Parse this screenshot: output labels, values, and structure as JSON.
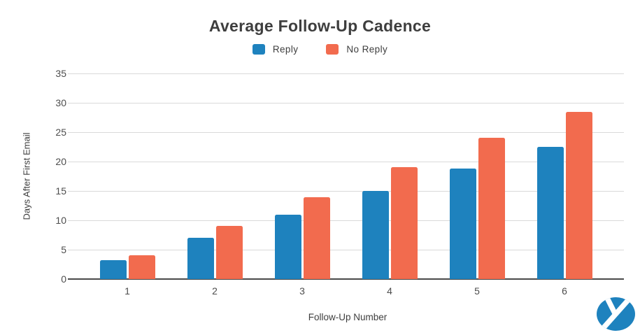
{
  "chart_data": {
    "type": "bar",
    "title": "Average Follow-Up Cadence",
    "categories": [
      "1",
      "2",
      "3",
      "4",
      "5",
      "6"
    ],
    "series": [
      {
        "name": "Reply",
        "color": "#1E82BE",
        "values": [
          3.2,
          7.0,
          11.0,
          15.0,
          18.8,
          22.5
        ]
      },
      {
        "name": "No Reply",
        "color": "#F26B4E",
        "values": [
          4.1,
          9.0,
          13.9,
          19.0,
          24.0,
          28.5
        ]
      }
    ],
    "xlabel": "Follow-Up Number",
    "ylabel": "Days After First Email",
    "ylim": [
      0,
      35
    ],
    "yticks": [
      0,
      5,
      10,
      15,
      20,
      25,
      30,
      35
    ],
    "grid": true,
    "legend_position": "top-center",
    "background": "#FFFFFF"
  },
  "colors": {
    "title_text": "#3E3E3E",
    "axis_text": "#4D4D4D",
    "gridline": "#D9D9D9",
    "axis_line": "#4A4A4A",
    "logo": "#1E82BE"
  },
  "branding": {
    "logo": "yesware-logo"
  }
}
